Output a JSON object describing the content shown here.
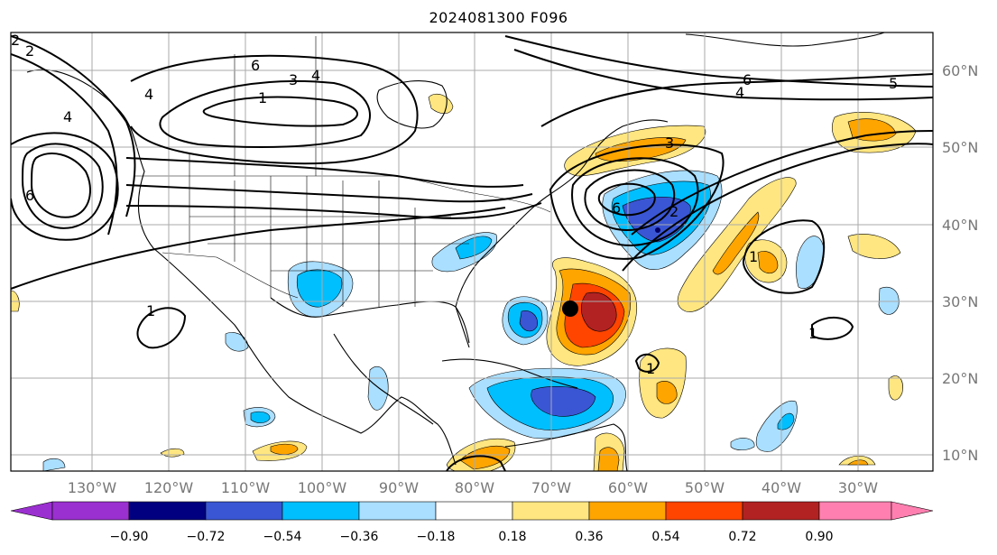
{
  "title": "2024081300 F096",
  "map": {
    "lon_ticks": [
      "130°W",
      "120°W",
      "110°W",
      "100°W",
      "90°W",
      "80°W",
      "70°W",
      "60°W",
      "50°W",
      "40°W",
      "30°W"
    ],
    "lat_ticks": [
      "60°N",
      "50°N",
      "40°N",
      "30°N",
      "20°N",
      "10°N"
    ],
    "storm_marker": "storm-center-marker"
  },
  "colorbar": {
    "ticks": [
      "−0.90",
      "−0.72",
      "−0.54",
      "−0.36",
      "−0.18",
      "0.18",
      "0.36",
      "0.54",
      "0.72",
      "0.90"
    ],
    "colors": [
      "#9b30d0",
      "#000080",
      "#3a56d4",
      "#00bfff",
      "#aadfff",
      "#ffffff",
      "#ffe680",
      "#ffa500",
      "#ff4500",
      "#b22222",
      "#ff80b0"
    ]
  },
  "contour_labels": [
    "6",
    "3",
    "4",
    "1",
    "6",
    "4",
    "5",
    "3",
    "6",
    "2",
    "1",
    "1",
    "1",
    "6",
    "4",
    "2",
    "4",
    "2",
    "1"
  ],
  "colors": {
    "purple": "#9b30d0",
    "navy": "#000080",
    "blue": "#3a56d4",
    "cyan": "#00bfff",
    "lightblue": "#aadfff",
    "yellow": "#ffe680",
    "orange": "#ffa500",
    "redorange": "#ff4500",
    "darkred": "#b22222",
    "pink": "#ff80b0",
    "grid": "#aaaaaa"
  }
}
